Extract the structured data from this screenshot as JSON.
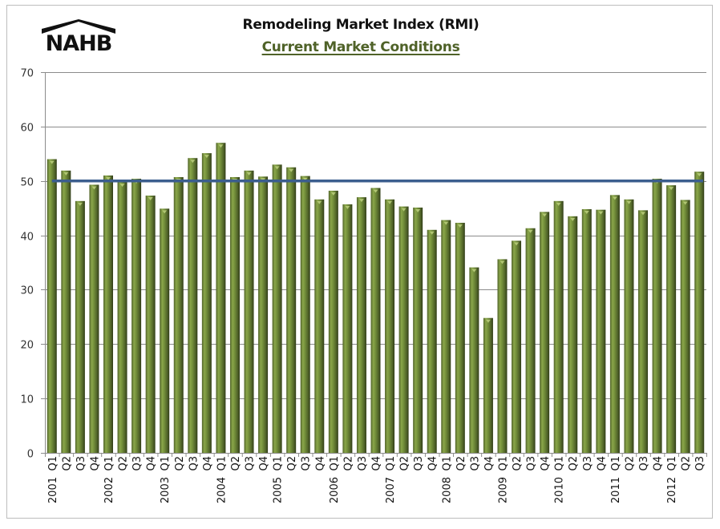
{
  "logo": {
    "text": "NAHB",
    "icon": "house-roof-icon"
  },
  "chart_data": {
    "type": "bar",
    "title": "Remodeling Market Index (RMI)",
    "subtitle": "Current Market Conditions",
    "xlabel": "",
    "ylabel": "",
    "ylim": [
      0,
      70
    ],
    "yticks": [
      0,
      10,
      20,
      30,
      40,
      50,
      60,
      70
    ],
    "grid": true,
    "legend": null,
    "reference_line": {
      "value": 50,
      "color": "#3c5e8e"
    },
    "bar_color": "#76923c",
    "categories": [
      "2001 Q1",
      "2001 Q2",
      "2001 Q3",
      "2001 Q4",
      "2002 Q1",
      "2002 Q2",
      "2002 Q3",
      "2002 Q4",
      "2003 Q1",
      "2003 Q2",
      "2003 Q3",
      "2003 Q4",
      "2004 Q1",
      "2004 Q2",
      "2004 Q3",
      "2004 Q4",
      "2005 Q1",
      "2005 Q2",
      "2005 Q3",
      "2005 Q4",
      "2006 Q1",
      "2006 Q2",
      "2006 Q3",
      "2006 Q4",
      "2007 Q1",
      "2007 Q2",
      "2007 Q3",
      "2007 Q4",
      "2008 Q1",
      "2008 Q2",
      "2008 Q3",
      "2008 Q4",
      "2009 Q1",
      "2009 Q2",
      "2009 Q3",
      "2009 Q4",
      "2010 Q1",
      "2010 Q2",
      "2010 Q3",
      "2010 Q4",
      "2011 Q1",
      "2011 Q2",
      "2011 Q3",
      "2011 Q4",
      "2012 Q1",
      "2012 Q2",
      "2012 Q3"
    ],
    "x_tick_labels": [
      {
        "year": "2001",
        "quarter": "Q1"
      },
      {
        "year": "",
        "quarter": "Q2"
      },
      {
        "year": "",
        "quarter": "Q3"
      },
      {
        "year": "",
        "quarter": "Q4"
      },
      {
        "year": "2002",
        "quarter": "Q1"
      },
      {
        "year": "",
        "quarter": "Q2"
      },
      {
        "year": "",
        "quarter": "Q3"
      },
      {
        "year": "",
        "quarter": "Q4"
      },
      {
        "year": "2003",
        "quarter": "Q1"
      },
      {
        "year": "",
        "quarter": "Q2"
      },
      {
        "year": "",
        "quarter": "Q3"
      },
      {
        "year": "",
        "quarter": "Q4"
      },
      {
        "year": "2004",
        "quarter": "Q1"
      },
      {
        "year": "",
        "quarter": "Q2"
      },
      {
        "year": "",
        "quarter": "Q3"
      },
      {
        "year": "",
        "quarter": "Q4"
      },
      {
        "year": "2005",
        "quarter": "Q1"
      },
      {
        "year": "",
        "quarter": "Q2"
      },
      {
        "year": "",
        "quarter": "Q3"
      },
      {
        "year": "",
        "quarter": "Q4"
      },
      {
        "year": "2006",
        "quarter": "Q1"
      },
      {
        "year": "",
        "quarter": "Q2"
      },
      {
        "year": "",
        "quarter": "Q3"
      },
      {
        "year": "",
        "quarter": "Q4"
      },
      {
        "year": "2007",
        "quarter": "Q1"
      },
      {
        "year": "",
        "quarter": "Q2"
      },
      {
        "year": "",
        "quarter": "Q3"
      },
      {
        "year": "",
        "quarter": "Q4"
      },
      {
        "year": "2008",
        "quarter": "Q1"
      },
      {
        "year": "",
        "quarter": "Q2"
      },
      {
        "year": "",
        "quarter": "Q3"
      },
      {
        "year": "",
        "quarter": "Q4"
      },
      {
        "year": "2009",
        "quarter": "Q1"
      },
      {
        "year": "",
        "quarter": "Q2"
      },
      {
        "year": "",
        "quarter": "Q3"
      },
      {
        "year": "",
        "quarter": "Q4"
      },
      {
        "year": "2010",
        "quarter": "Q1"
      },
      {
        "year": "",
        "quarter": "Q2"
      },
      {
        "year": "",
        "quarter": "Q3"
      },
      {
        "year": "",
        "quarter": "Q4"
      },
      {
        "year": "2011",
        "quarter": "Q1"
      },
      {
        "year": "",
        "quarter": "Q2"
      },
      {
        "year": "",
        "quarter": "Q3"
      },
      {
        "year": "",
        "quarter": "Q4"
      },
      {
        "year": "2012",
        "quarter": "Q1"
      },
      {
        "year": "",
        "quarter": "Q2"
      },
      {
        "year": "",
        "quarter": "Q3"
      }
    ],
    "values": [
      54.0,
      51.9,
      46.3,
      49.3,
      51.0,
      49.8,
      50.4,
      47.3,
      44.9,
      50.7,
      54.2,
      55.1,
      57.0,
      50.7,
      51.9,
      50.8,
      53.0,
      52.5,
      50.9,
      46.6,
      48.2,
      45.7,
      47.0,
      48.7,
      46.6,
      45.3,
      45.1,
      41.0,
      42.8,
      42.3,
      34.1,
      24.8,
      35.6,
      39.0,
      41.3,
      44.3,
      46.3,
      43.5,
      44.8,
      44.7,
      47.4,
      46.6,
      44.6,
      50.4,
      49.2,
      46.5,
      51.7
    ]
  }
}
